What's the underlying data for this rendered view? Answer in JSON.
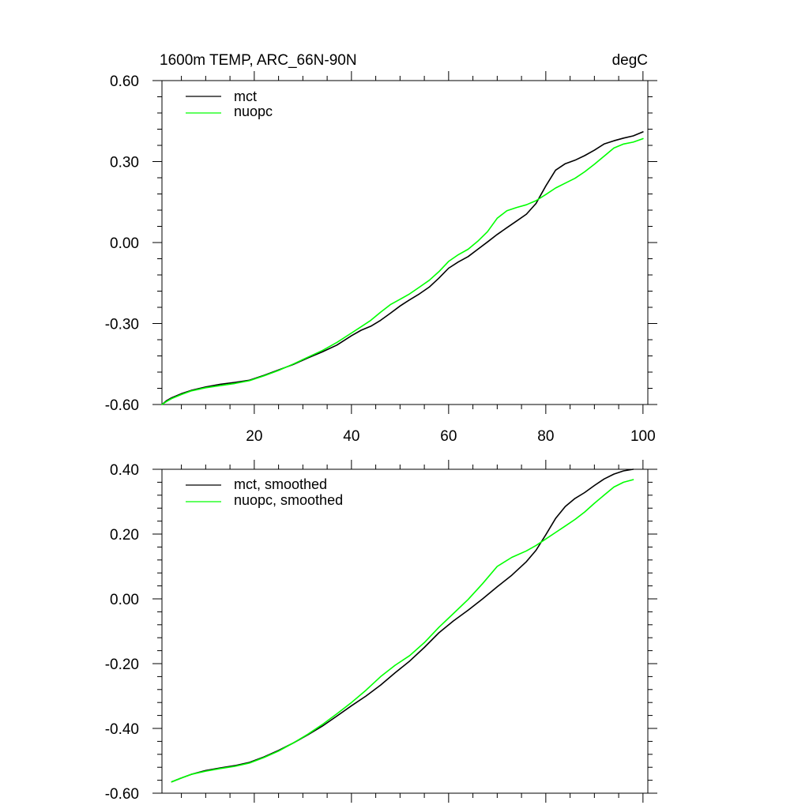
{
  "chart_data": [
    {
      "type": "line",
      "title": "1600m TEMP, ARC_66N-90N",
      "units": "degC",
      "xlim": [
        1,
        101
      ],
      "ylim": [
        -0.6,
        0.6
      ],
      "xticks": [
        20,
        40,
        60,
        80,
        100
      ],
      "xtick_labels": [
        "20",
        "40",
        "60",
        "80",
        "100"
      ],
      "yticks": [
        -0.6,
        -0.3,
        0.0,
        0.3,
        0.6
      ],
      "ytick_labels": [
        "-0.60",
        "-0.30",
        "0.00",
        "0.30",
        "0.60"
      ],
      "legend_position": "top-left",
      "x": [
        1,
        2,
        3,
        5,
        7,
        10,
        13,
        16,
        19,
        22,
        25,
        28,
        31,
        34,
        37,
        40,
        42,
        44,
        46,
        48,
        50,
        52,
        54,
        56,
        58,
        60,
        62,
        64,
        66,
        68,
        70,
        72,
        74,
        76,
        78,
        80,
        82,
        84,
        86,
        88,
        90,
        92,
        94,
        96,
        98,
        100
      ],
      "series": [
        {
          "name": "mct",
          "color": "#000000",
          "values": [
            -0.6,
            -0.585,
            -0.575,
            -0.56,
            -0.548,
            -0.535,
            -0.525,
            -0.518,
            -0.51,
            -0.492,
            -0.472,
            -0.452,
            -0.428,
            -0.405,
            -0.38,
            -0.345,
            -0.325,
            -0.31,
            -0.288,
            -0.262,
            -0.235,
            -0.212,
            -0.19,
            -0.165,
            -0.132,
            -0.095,
            -0.072,
            -0.052,
            -0.025,
            0.002,
            0.03,
            0.055,
            0.08,
            0.105,
            0.145,
            0.21,
            0.268,
            0.292,
            0.305,
            0.322,
            0.342,
            0.365,
            0.377,
            0.387,
            0.395,
            0.41
          ]
        },
        {
          "name": "nuopc",
          "color": "#00ff00",
          "values": [
            -0.6,
            -0.588,
            -0.578,
            -0.563,
            -0.55,
            -0.538,
            -0.53,
            -0.522,
            -0.512,
            -0.494,
            -0.474,
            -0.45,
            -0.425,
            -0.4,
            -0.37,
            -0.335,
            -0.312,
            -0.288,
            -0.258,
            -0.23,
            -0.21,
            -0.19,
            -0.165,
            -0.14,
            -0.108,
            -0.07,
            -0.045,
            -0.025,
            0.005,
            0.04,
            0.09,
            0.118,
            0.13,
            0.14,
            0.155,
            0.178,
            0.202,
            0.22,
            0.238,
            0.262,
            0.29,
            0.32,
            0.35,
            0.365,
            0.372,
            0.385
          ]
        }
      ]
    },
    {
      "type": "line",
      "title": "",
      "xlim": [
        1,
        101
      ],
      "ylim": [
        -0.6,
        0.4
      ],
      "xticks": [
        20,
        40,
        60,
        80,
        100
      ],
      "yticks": [
        -0.6,
        -0.4,
        -0.2,
        0.0,
        0.2,
        0.4
      ],
      "ytick_labels": [
        "-0.60",
        "-0.40",
        "-0.20",
        "0.00",
        "0.20",
        "0.40"
      ],
      "legend_position": "top-left",
      "x": [
        3,
        5,
        7,
        10,
        13,
        16,
        19,
        22,
        25,
        28,
        31,
        34,
        37,
        40,
        43,
        46,
        49,
        52,
        55,
        58,
        61,
        64,
        67,
        70,
        73,
        76,
        78,
        80,
        82,
        84,
        86,
        88,
        90,
        92,
        94,
        96,
        98
      ],
      "series": [
        {
          "name": "mct, smoothed",
          "color": "#000000",
          "values": [
            -0.565,
            -0.553,
            -0.542,
            -0.53,
            -0.522,
            -0.515,
            -0.505,
            -0.488,
            -0.468,
            -0.445,
            -0.42,
            -0.393,
            -0.362,
            -0.33,
            -0.3,
            -0.266,
            -0.228,
            -0.192,
            -0.15,
            -0.105,
            -0.068,
            -0.035,
            0.0,
            0.037,
            0.073,
            0.115,
            0.15,
            0.198,
            0.248,
            0.285,
            0.31,
            0.328,
            0.35,
            0.37,
            0.385,
            0.395,
            0.4
          ]
        },
        {
          "name": "nuopc, smoothed",
          "color": "#00ff00",
          "values": [
            -0.565,
            -0.553,
            -0.542,
            -0.532,
            -0.524,
            -0.517,
            -0.507,
            -0.49,
            -0.47,
            -0.445,
            -0.418,
            -0.388,
            -0.355,
            -0.32,
            -0.282,
            -0.24,
            -0.205,
            -0.175,
            -0.135,
            -0.088,
            -0.045,
            -0.002,
            0.047,
            0.1,
            0.128,
            0.148,
            0.165,
            0.185,
            0.205,
            0.225,
            0.245,
            0.268,
            0.295,
            0.32,
            0.345,
            0.36,
            0.368
          ]
        }
      ]
    }
  ]
}
